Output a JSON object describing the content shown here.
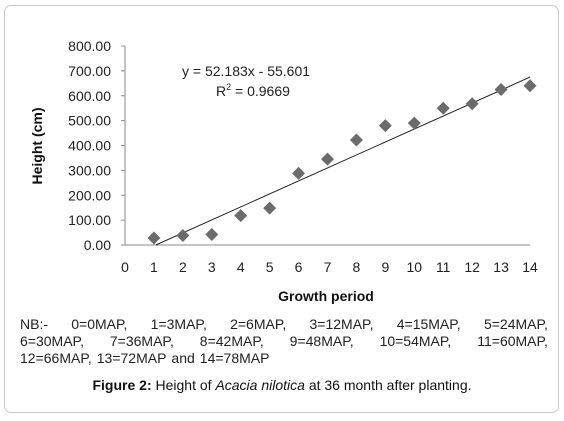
{
  "chart_data": {
    "type": "scatter",
    "x": [
      1,
      2,
      3,
      4,
      5,
      6,
      7,
      8,
      9,
      10,
      11,
      12,
      13,
      14
    ],
    "y": [
      28,
      38,
      42,
      118,
      148,
      288,
      345,
      422,
      480,
      490,
      550,
      568,
      625,
      640
    ],
    "xlabel": "Growth period",
    "ylabel": "Height (cm)",
    "xlim": [
      0,
      14
    ],
    "ylim": [
      0,
      800
    ],
    "x_ticks": [
      "0",
      "1",
      "2",
      "3",
      "4",
      "5",
      "6",
      "7",
      "8",
      "9",
      "10",
      "11",
      "12",
      "13",
      "14"
    ],
    "y_ticks": [
      "0.00",
      "100.00",
      "200.00",
      "300.00",
      "400.00",
      "500.00",
      "600.00",
      "700.00",
      "800.00"
    ],
    "trendline": {
      "type": "linear",
      "slope": 52.183,
      "intercept": -55.601,
      "equation": "y = 52.183x - 55.601",
      "r2_label": "R",
      "r2_sup": "2",
      "r2_value": " = 0.9669"
    },
    "marker_color": "#6b6b6b",
    "line_color": "#222222",
    "grid": false
  },
  "note": {
    "line1": [
      "NB:-",
      "0=0MAP,",
      "1=3MAP,",
      "2=6MAP,",
      "3=12MAP,",
      "4=15MAP,",
      "5=24MAP,"
    ],
    "line2": [
      "6=30MAP,",
      "7=36MAP,",
      "8=42MAP,",
      "9=48MAP,",
      "10=54MAP,",
      "11=60MAP,"
    ],
    "line3": [
      "12=66MAP,",
      "13=72MAP",
      "and",
      "14=78MAP"
    ]
  },
  "caption": {
    "figure": "Figure 2:",
    "text_before": " Height of ",
    "species": "Acacia nilotica",
    "text_after": " at 36 month after planting."
  }
}
